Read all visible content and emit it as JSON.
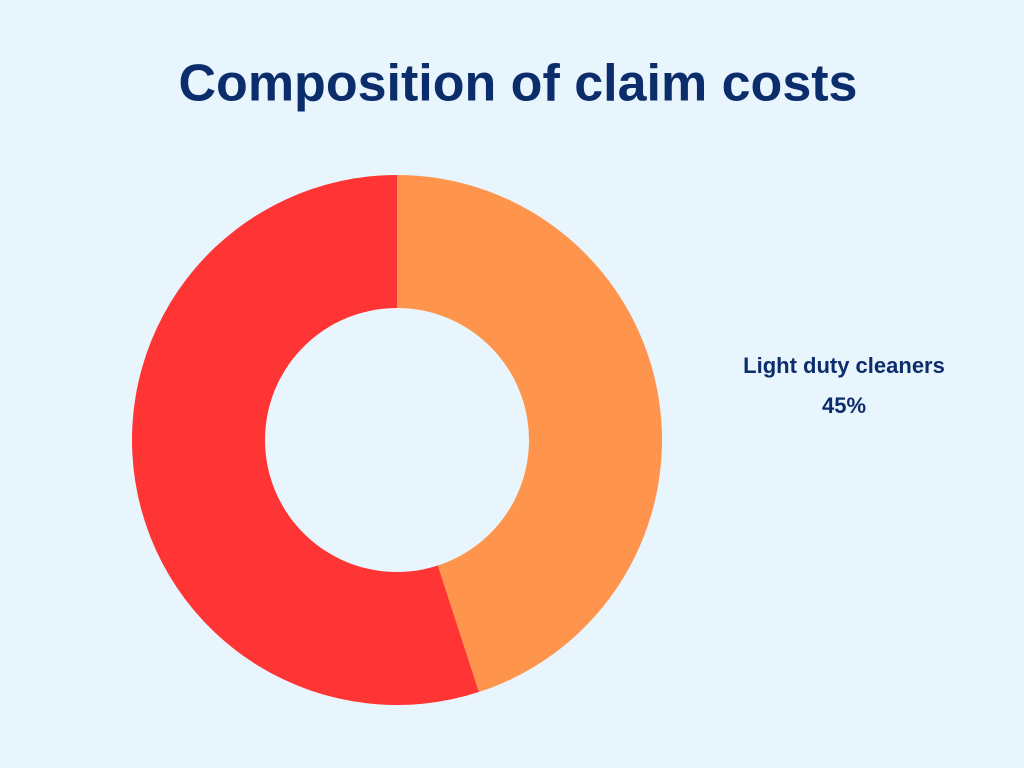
{
  "chart_data": {
    "type": "donut",
    "title": "Composition of claim costs",
    "categories": [
      "Light duty cleaners",
      null
    ],
    "values": [
      45,
      55
    ],
    "value_labels": [
      "45%",
      null
    ],
    "colors": [
      "#ff944d",
      "#ff3434"
    ]
  }
}
